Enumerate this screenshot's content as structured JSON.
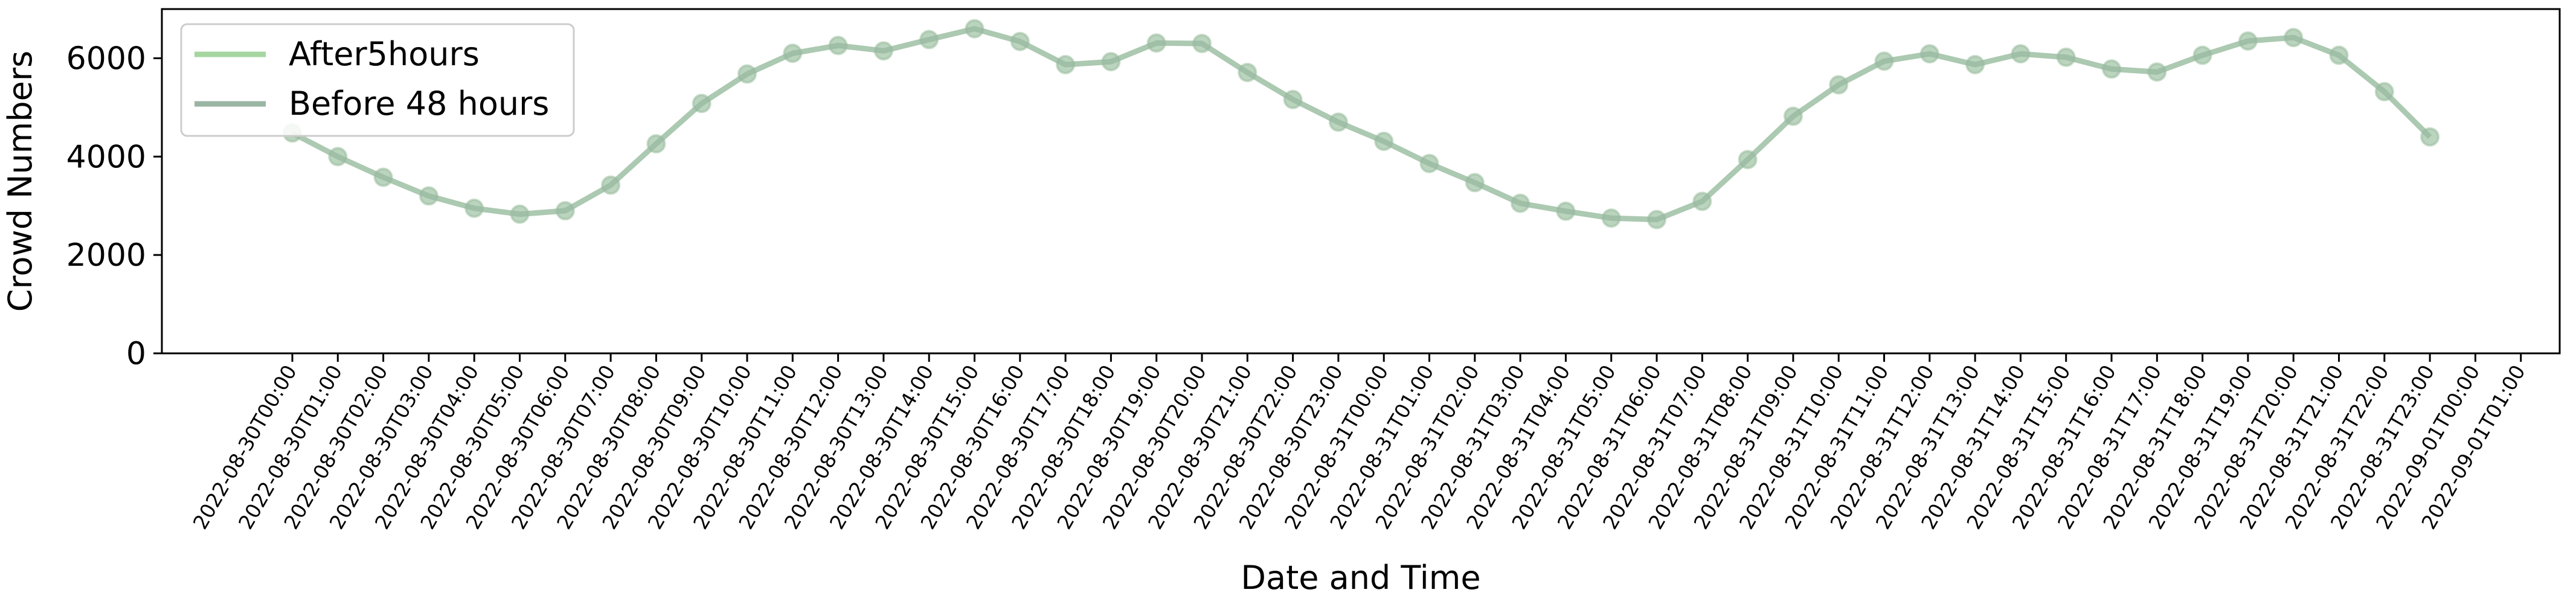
{
  "chart_data": {
    "type": "line",
    "title": "",
    "xlabel": "Date and Time",
    "ylabel": "Crowd Numbers",
    "ylim": [
      0,
      7000
    ],
    "yticks": [
      0,
      2000,
      4000,
      6000
    ],
    "grid": false,
    "legend_position": "top-left",
    "x": [
      "2022-08-30T00:00",
      "2022-08-30T01:00",
      "2022-08-30T02:00",
      "2022-08-30T03:00",
      "2022-08-30T04:00",
      "2022-08-30T05:00",
      "2022-08-30T06:00",
      "2022-08-30T07:00",
      "2022-08-30T08:00",
      "2022-08-30T09:00",
      "2022-08-30T10:00",
      "2022-08-30T11:00",
      "2022-08-30T12:00",
      "2022-08-30T13:00",
      "2022-08-30T14:00",
      "2022-08-30T15:00",
      "2022-08-30T16:00",
      "2022-08-30T17:00",
      "2022-08-30T18:00",
      "2022-08-30T19:00",
      "2022-08-30T20:00",
      "2022-08-30T21:00",
      "2022-08-30T22:00",
      "2022-08-30T23:00",
      "2022-08-31T00:00",
      "2022-08-31T01:00",
      "2022-08-31T02:00",
      "2022-08-31T03:00",
      "2022-08-31T04:00",
      "2022-08-31T05:00",
      "2022-08-31T06:00",
      "2022-08-31T07:00",
      "2022-08-31T08:00",
      "2022-08-31T09:00",
      "2022-08-31T10:00",
      "2022-08-31T11:00",
      "2022-08-31T12:00",
      "2022-08-31T13:00",
      "2022-08-31T14:00",
      "2022-08-31T15:00",
      "2022-08-31T16:00",
      "2022-08-31T17:00",
      "2022-08-31T18:00",
      "2022-08-31T19:00",
      "2022-08-31T20:00",
      "2022-08-31T21:00",
      "2022-08-31T22:00",
      "2022-08-31T23:00",
      "2022-09-01T00:00",
      "2022-09-01T01:00"
    ],
    "series": [
      {
        "name": "After5hours",
        "color": "#a5d6a0",
        "values": [
          4480,
          4000,
          3580,
          3200,
          2950,
          2830,
          2900,
          3420,
          4260,
          5080,
          5680,
          6100,
          6260,
          6150,
          6380,
          6600,
          6340,
          5870,
          5930,
          6310,
          6300,
          5710,
          5160,
          4700,
          4310,
          3860,
          3470,
          3050,
          2890,
          2750,
          2720,
          3090,
          3940,
          4820,
          5460,
          5940,
          6090,
          5870,
          6090,
          6020,
          5780,
          5720,
          6060,
          6350,
          6420,
          6060,
          5320,
          4400,
          null,
          null
        ]
      },
      {
        "name": "Before 48 hours",
        "color": "#9ab5a3",
        "values": [
          4480,
          4000,
          3580,
          3200,
          2950,
          2830,
          2900,
          3420,
          4260,
          5080,
          5680,
          6100,
          6260,
          6150,
          6380,
          6600,
          6340,
          5870,
          5930,
          6310,
          6300,
          5710,
          5160,
          4700,
          4310,
          3860,
          3470,
          3050,
          2890,
          2750,
          2720,
          3090,
          3940,
          4820,
          5460,
          5940,
          6090,
          5870,
          6090,
          6020,
          5780,
          5720,
          6060,
          6350,
          6420,
          6060,
          5320,
          4400,
          null,
          null
        ]
      }
    ]
  }
}
